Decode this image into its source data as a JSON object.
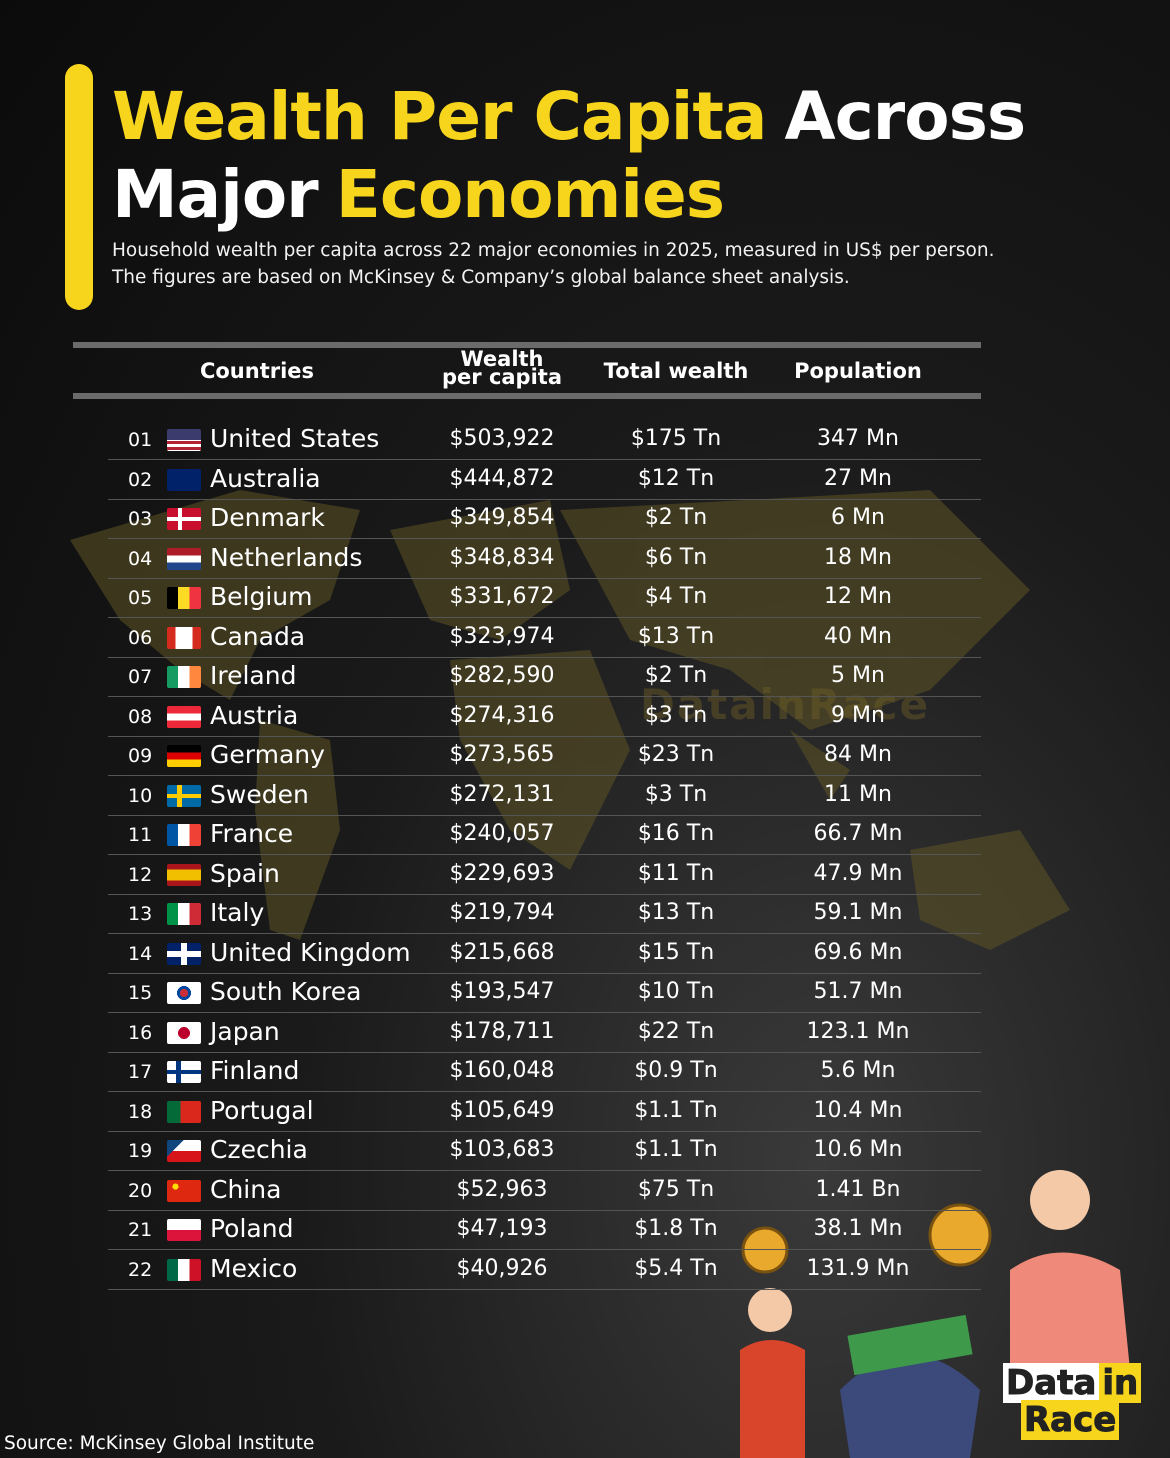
{
  "header": {
    "title": {
      "lines": [
        [
          {
            "text": "Wealth Per Capita",
            "highlight": true
          },
          {
            "text": "Across",
            "highlight": false
          }
        ],
        [
          {
            "text": "Major",
            "highlight": false
          },
          {
            "text": "Economies",
            "highlight": true
          }
        ]
      ]
    },
    "subtitle": [
      "Household wealth per capita across 22 major economies in 2025, measured in US$ per person.",
      "The figures are based on McKinsey & Company’s global balance sheet analysis."
    ]
  },
  "table": {
    "columns": [
      "Countries",
      "Wealth per capita",
      "Total wealth",
      "Population"
    ],
    "rows": [
      [
        "01",
        "United States",
        "$503,922",
        "$175 Tn",
        "347 Mn"
      ],
      [
        "02",
        "Australia",
        "$444,872",
        "$12 Tn",
        "27 Mn"
      ],
      [
        "03",
        "Denmark",
        "$349,854",
        "$2 Tn",
        "6 Mn"
      ],
      [
        "04",
        "Netherlands",
        "$348,834",
        "$6 Tn",
        "18 Mn"
      ],
      [
        "05",
        "Belgium",
        "$331,672",
        "$4 Tn",
        "12 Mn"
      ],
      [
        "06",
        "Canada",
        "$323,974",
        "$13 Tn",
        "40 Mn"
      ],
      [
        "07",
        "Ireland",
        "$282,590",
        "$2 Tn",
        "5 Mn"
      ],
      [
        "08",
        "Austria",
        "$274,316",
        "$3 Tn",
        "9 Mn"
      ],
      [
        "09",
        "Germany",
        "$273,565",
        "$23 Tn",
        "84 Mn"
      ],
      [
        "10",
        "Sweden",
        "$272,131",
        "$3 Tn",
        "11 Mn"
      ],
      [
        "11",
        "France",
        "$240,057",
        "$16 Tn",
        "66.7 Mn"
      ],
      [
        "12",
        "Spain",
        "$229,693",
        "$11 Tn",
        "47.9 Mn"
      ],
      [
        "13",
        "Italy",
        "$219,794",
        "$13 Tn",
        "59.1 Mn"
      ],
      [
        "14",
        "United Kingdom",
        "$215,668",
        "$15 Tn",
        "69.6 Mn"
      ],
      [
        "15",
        "South Korea",
        "$193,547",
        "$10 Tn",
        "51.7 Mn"
      ],
      [
        "16",
        "Japan",
        "$178,711",
        "$22 Tn",
        "123.1 Mn"
      ],
      [
        "17",
        "Finland",
        "$160,048",
        "$0.9 Tn",
        "5.6 Mn"
      ],
      [
        "18",
        "Portugal",
        "$105,649",
        "$1.1 Tn",
        "10.4 Mn"
      ],
      [
        "19",
        "Czechia",
        "$103,683",
        "$1.1 Tn",
        "10.6 Mn"
      ],
      [
        "20",
        "China",
        "$52,963",
        "$75 Tn",
        "1.41 Bn"
      ],
      [
        "21",
        "Poland",
        "$47,193",
        "$1.8 Tn",
        "38.1 Mn"
      ],
      [
        "22",
        "Mexico",
        "$40,926",
        "$5.4 Tn",
        "131.9 Mn"
      ]
    ]
  },
  "watermark": "DatainRace",
  "logo": {
    "line1": [
      "Data",
      "in"
    ],
    "line2": "Race"
  },
  "footer": {
    "source": "Source: McKinsey Global Institute"
  }
}
